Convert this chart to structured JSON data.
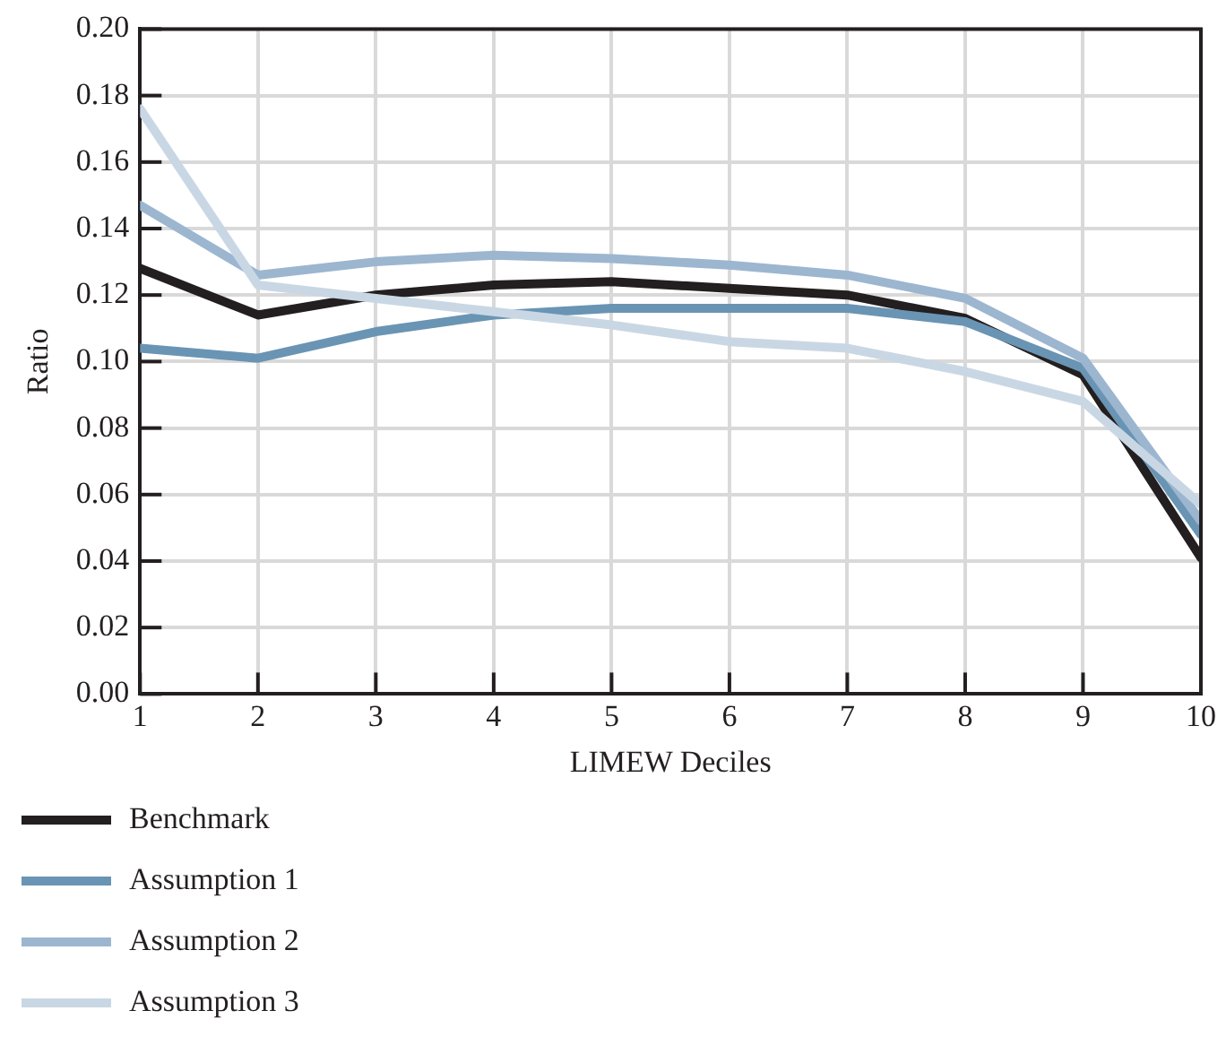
{
  "chart_data": {
    "type": "line",
    "xlabel": "LIMEW Deciles",
    "ylabel": "Ratio",
    "x": [
      1,
      2,
      3,
      4,
      5,
      6,
      7,
      8,
      9,
      10
    ],
    "xlim": [
      1,
      10
    ],
    "xticks": [
      1,
      2,
      3,
      4,
      5,
      6,
      7,
      8,
      9,
      10
    ],
    "ylim": [
      0,
      0.2
    ],
    "yticks": [
      {
        "value": 0,
        "label": "0.00"
      },
      {
        "value": 0.02,
        "label": "0.02"
      },
      {
        "value": 0.04,
        "label": "0.04"
      },
      {
        "value": 0.06,
        "label": "0.06"
      },
      {
        "value": 0.08,
        "label": "0.08"
      },
      {
        "value": 0.1,
        "label": "0.10"
      },
      {
        "value": 0.12,
        "label": "0.12"
      },
      {
        "value": 0.14,
        "label": "0.14"
      },
      {
        "value": 0.16,
        "label": "0.16"
      },
      {
        "value": 0.18,
        "label": "0.18"
      },
      {
        "value": 0.2,
        "label": "0.20"
      }
    ],
    "grid": true,
    "legend": "bottom",
    "marker": "none",
    "line_style": "solid",
    "series": [
      {
        "name": "Benchmark",
        "color": "#231f20",
        "values": [
          0.128,
          0.114,
          0.12,
          0.123,
          0.124,
          0.122,
          0.12,
          0.113,
          0.096,
          0.041
        ]
      },
      {
        "name": "Assumption 1",
        "color": "#6a94b4",
        "values": [
          0.104,
          0.101,
          0.109,
          0.114,
          0.116,
          0.116,
          0.116,
          0.112,
          0.098,
          0.048
        ]
      },
      {
        "name": "Assumption 2",
        "color": "#9cb6d0",
        "values": [
          0.147,
          0.126,
          0.13,
          0.132,
          0.131,
          0.129,
          0.126,
          0.119,
          0.101,
          0.052
        ]
      },
      {
        "name": "Assumption 3",
        "color": "#c9d7e5",
        "values": [
          0.176,
          0.123,
          0.119,
          0.115,
          0.111,
          0.106,
          0.104,
          0.097,
          0.088,
          0.057
        ]
      }
    ]
  }
}
